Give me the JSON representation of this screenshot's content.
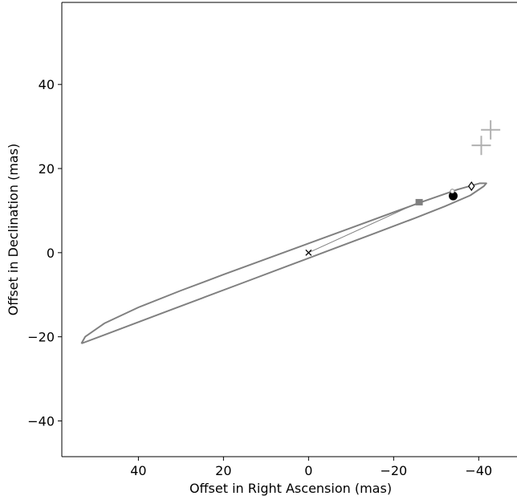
{
  "chart_data": {
    "type": "scatter",
    "title": "",
    "xlabel": "Offset in Right Ascension (mas)",
    "ylabel": "Offset in Declination (mas)",
    "xlim": [
      58,
      -49
    ],
    "ylim": [
      -48.5,
      59.5
    ],
    "x_inverted": true,
    "grid": false,
    "xticks": [
      40,
      20,
      0,
      -20,
      -40
    ],
    "xtick_labels": [
      "40",
      "20",
      "0",
      "−20",
      "−40"
    ],
    "yticks": [
      40,
      20,
      0,
      -20,
      -40
    ],
    "ytick_labels": [
      "40",
      "20",
      "0",
      "−20",
      "−40"
    ],
    "orbit": {
      "name": "orbit",
      "color": "#808080",
      "points": [
        [
          53.4,
          -21.6
        ],
        [
          45,
          -18.4
        ],
        [
          35,
          -14.6
        ],
        [
          25,
          -10.8
        ],
        [
          15,
          -7.0
        ],
        [
          5,
          -3.2
        ],
        [
          -5,
          0.6
        ],
        [
          -15,
          4.4
        ],
        [
          -25,
          8.2
        ],
        [
          -32,
          11.0
        ],
        [
          -38,
          13.6
        ],
        [
          -41.2,
          15.8
        ],
        [
          -41.8,
          16.5
        ],
        [
          -40.2,
          16.5
        ],
        [
          -35,
          15.0
        ],
        [
          -27,
          12.2
        ],
        [
          -20,
          9.6
        ],
        [
          -10,
          5.9
        ],
        [
          0,
          2.2
        ],
        [
          10,
          -1.5
        ],
        [
          20,
          -5.2
        ],
        [
          30,
          -9.0
        ],
        [
          40,
          -13.0
        ],
        [
          48,
          -16.8
        ],
        [
          52.5,
          -20.0
        ],
        [
          53.4,
          -21.6
        ]
      ]
    },
    "connector": {
      "color": "#808080",
      "points": [
        [
          0,
          0
        ],
        [
          -26,
          12
        ]
      ]
    },
    "markers": [
      {
        "name": "center-cross",
        "shape": "x",
        "x": 0,
        "y": 0,
        "color": "#000000"
      },
      {
        "name": "square-marker",
        "shape": "square",
        "x": -26,
        "y": 12,
        "color": "#808080"
      },
      {
        "name": "filled-circle",
        "shape": "circle",
        "x": -34,
        "y": 13.5,
        "color": "#000000"
      },
      {
        "name": "small-open-circle",
        "shape": "small-circle",
        "x": -33.8,
        "y": 14.6,
        "color": "#808080"
      },
      {
        "name": "diamond-marker",
        "shape": "diamond",
        "x": -38.3,
        "y": 15.8,
        "color": "#000000"
      },
      {
        "name": "plus-marker-1",
        "shape": "plus",
        "x": -40.6,
        "y": 25.5,
        "color": "#b0b0b0"
      },
      {
        "name": "plus-marker-2",
        "shape": "plus",
        "x": -42.8,
        "y": 29.2,
        "color": "#b0b0b0"
      }
    ]
  }
}
